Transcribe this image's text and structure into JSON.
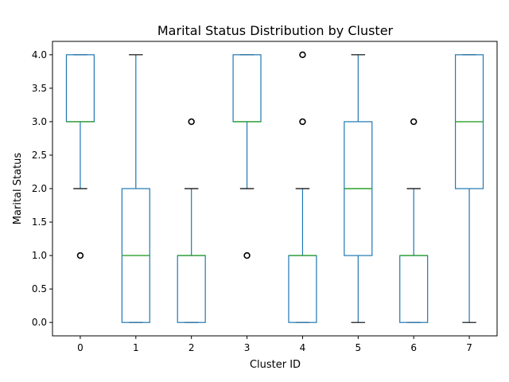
{
  "chart_data": {
    "type": "box",
    "title": "Marital Status Distribution by Cluster",
    "xlabel": "Cluster ID",
    "ylabel": "Marital Status",
    "categories": [
      "0",
      "1",
      "2",
      "3",
      "4",
      "5",
      "6",
      "7"
    ],
    "ylim": [
      -0.2,
      4.2
    ],
    "yticks": [
      "0.0",
      "0.5",
      "1.0",
      "1.5",
      "2.0",
      "2.5",
      "3.0",
      "3.5",
      "4.0"
    ],
    "grid": false,
    "boxes": [
      {
        "category": "0",
        "whisker_low": 2,
        "q1": 3,
        "median": 3,
        "q3": 4,
        "whisker_high": 4,
        "outliers": [
          1
        ]
      },
      {
        "category": "1",
        "whisker_low": 0,
        "q1": 0,
        "median": 1,
        "q3": 2,
        "whisker_high": 4,
        "outliers": []
      },
      {
        "category": "2",
        "whisker_low": 0,
        "q1": 0,
        "median": 1,
        "q3": 1,
        "whisker_high": 2,
        "outliers": [
          3
        ]
      },
      {
        "category": "3",
        "whisker_low": 2,
        "q1": 3,
        "median": 3,
        "q3": 4,
        "whisker_high": 4,
        "outliers": [
          1
        ]
      },
      {
        "category": "4",
        "whisker_low": 0,
        "q1": 0,
        "median": 1,
        "q3": 1,
        "whisker_high": 2,
        "outliers": [
          3,
          4
        ]
      },
      {
        "category": "5",
        "whisker_low": 0,
        "q1": 1,
        "median": 2,
        "q3": 3,
        "whisker_high": 4,
        "outliers": []
      },
      {
        "category": "6",
        "whisker_low": 0,
        "q1": 0,
        "median": 1,
        "q3": 1,
        "whisker_high": 2,
        "outliers": [
          3
        ]
      },
      {
        "category": "7",
        "whisker_low": 0,
        "q1": 2,
        "median": 3,
        "q3": 4,
        "whisker_high": 4,
        "outliers": []
      }
    ],
    "colors": {
      "box": "#1f77b4",
      "median": "#2ca02c",
      "whisker_cap": "#000000",
      "outlier": "#000000"
    }
  }
}
